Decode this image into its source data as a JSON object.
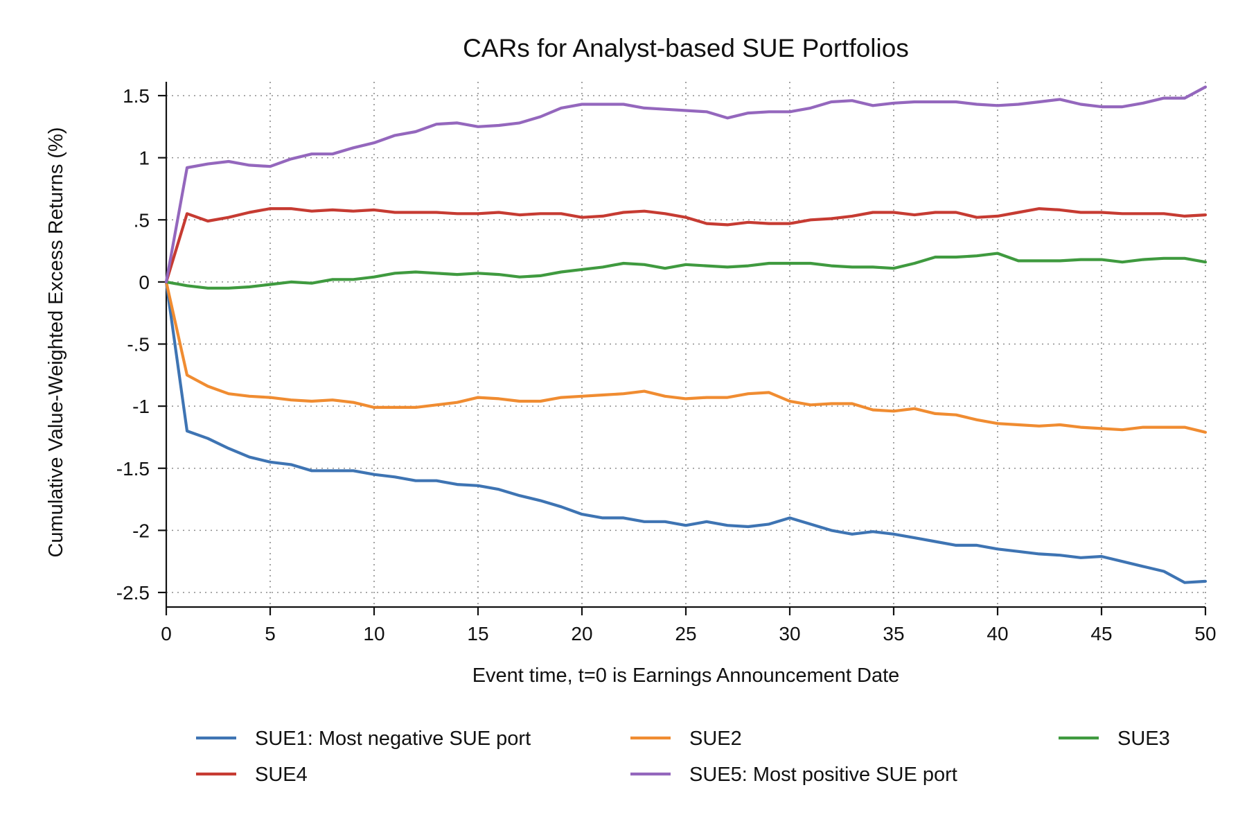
{
  "chart_data": {
    "type": "line",
    "title": "CARs for Analyst-based SUE Portfolios",
    "xlabel": "Event time, t=0 is Earnings Announcement Date",
    "ylabel": "Cumulative Value-Weighted Excess Returns (%)",
    "xlim": [
      0,
      50
    ],
    "ylim": [
      -2.5,
      1.5
    ],
    "xticks": [
      0,
      5,
      10,
      15,
      20,
      25,
      30,
      35,
      40,
      45,
      50
    ],
    "xtick_labels": [
      "0",
      "5",
      "10",
      "15",
      "20",
      "25",
      "30",
      "35",
      "40",
      "45",
      "50"
    ],
    "yticks": [
      1.5,
      1,
      0.5,
      0,
      -0.5,
      -1,
      -1.5,
      -2,
      -2.5
    ],
    "ytick_labels": [
      "1.5",
      "1",
      ".5",
      "0",
      "-.5",
      "-1",
      "-1.5",
      "-2",
      "-2.5"
    ],
    "grid": true,
    "legend_position": "bottom",
    "x": [
      0,
      1,
      2,
      3,
      4,
      5,
      6,
      7,
      8,
      9,
      10,
      11,
      12,
      13,
      14,
      15,
      16,
      17,
      18,
      19,
      20,
      21,
      22,
      23,
      24,
      25,
      26,
      27,
      28,
      29,
      30,
      31,
      32,
      33,
      34,
      35,
      36,
      37,
      38,
      39,
      40,
      41,
      42,
      43,
      44,
      45,
      46,
      47,
      48,
      49,
      50
    ],
    "series": [
      {
        "name": "SUE1: Most negative SUE port",
        "color": "#3e74b3",
        "values": [
          0,
          -1.2,
          -1.26,
          -1.34,
          -1.41,
          -1.45,
          -1.47,
          -1.52,
          -1.52,
          -1.52,
          -1.55,
          -1.57,
          -1.6,
          -1.6,
          -1.63,
          -1.64,
          -1.67,
          -1.72,
          -1.76,
          -1.81,
          -1.87,
          -1.9,
          -1.9,
          -1.93,
          -1.93,
          -1.96,
          -1.93,
          -1.96,
          -1.97,
          -1.95,
          -1.9,
          -1.95,
          -2.0,
          -2.03,
          -2.01,
          -2.03,
          -2.06,
          -2.09,
          -2.12,
          -2.12,
          -2.15,
          -2.17,
          -2.19,
          -2.2,
          -2.22,
          -2.21,
          -2.25,
          -2.29,
          -2.33,
          -2.42,
          -2.41
        ]
      },
      {
        "name": "SUE2",
        "color": "#f08c31",
        "values": [
          0,
          -0.75,
          -0.84,
          -0.9,
          -0.92,
          -0.93,
          -0.95,
          -0.96,
          -0.95,
          -0.97,
          -1.01,
          -1.01,
          -1.01,
          -0.99,
          -0.97,
          -0.93,
          -0.94,
          -0.96,
          -0.96,
          -0.93,
          -0.92,
          -0.91,
          -0.9,
          -0.88,
          -0.92,
          -0.94,
          -0.93,
          -0.93,
          -0.9,
          -0.89,
          -0.96,
          -0.99,
          -0.98,
          -0.98,
          -1.03,
          -1.04,
          -1.02,
          -1.06,
          -1.07,
          -1.11,
          -1.14,
          -1.15,
          -1.16,
          -1.15,
          -1.17,
          -1.18,
          -1.19,
          -1.17,
          -1.17,
          -1.17,
          -1.21
        ]
      },
      {
        "name": "SUE3",
        "color": "#3f9a3f",
        "values": [
          0,
          -0.03,
          -0.05,
          -0.05,
          -0.04,
          -0.02,
          0.0,
          -0.01,
          0.02,
          0.02,
          0.04,
          0.07,
          0.08,
          0.07,
          0.06,
          0.07,
          0.06,
          0.04,
          0.05,
          0.08,
          0.1,
          0.12,
          0.15,
          0.14,
          0.11,
          0.14,
          0.13,
          0.12,
          0.13,
          0.15,
          0.15,
          0.15,
          0.13,
          0.12,
          0.12,
          0.11,
          0.15,
          0.2,
          0.2,
          0.21,
          0.23,
          0.17,
          0.17,
          0.17,
          0.18,
          0.18,
          0.16,
          0.18,
          0.19,
          0.19,
          0.16
        ]
      },
      {
        "name": "SUE4",
        "color": "#c63b32",
        "values": [
          0,
          0.55,
          0.49,
          0.52,
          0.56,
          0.59,
          0.59,
          0.57,
          0.58,
          0.57,
          0.58,
          0.56,
          0.56,
          0.56,
          0.55,
          0.55,
          0.56,
          0.54,
          0.55,
          0.55,
          0.52,
          0.53,
          0.56,
          0.57,
          0.55,
          0.52,
          0.47,
          0.46,
          0.48,
          0.47,
          0.47,
          0.5,
          0.51,
          0.53,
          0.56,
          0.56,
          0.54,
          0.56,
          0.56,
          0.52,
          0.53,
          0.56,
          0.59,
          0.58,
          0.56,
          0.56,
          0.55,
          0.55,
          0.55,
          0.53,
          0.54
        ]
      },
      {
        "name": "SUE5: Most positive SUE port",
        "color": "#9467bd",
        "values": [
          0,
          0.92,
          0.95,
          0.97,
          0.94,
          0.93,
          0.99,
          1.03,
          1.03,
          1.08,
          1.12,
          1.18,
          1.21,
          1.27,
          1.28,
          1.25,
          1.26,
          1.28,
          1.33,
          1.4,
          1.43,
          1.43,
          1.43,
          1.4,
          1.39,
          1.38,
          1.37,
          1.32,
          1.36,
          1.37,
          1.37,
          1.4,
          1.45,
          1.46,
          1.42,
          1.44,
          1.45,
          1.45,
          1.45,
          1.43,
          1.42,
          1.43,
          1.45,
          1.47,
          1.43,
          1.41,
          1.41,
          1.44,
          1.48,
          1.48,
          1.57
        ]
      }
    ]
  }
}
